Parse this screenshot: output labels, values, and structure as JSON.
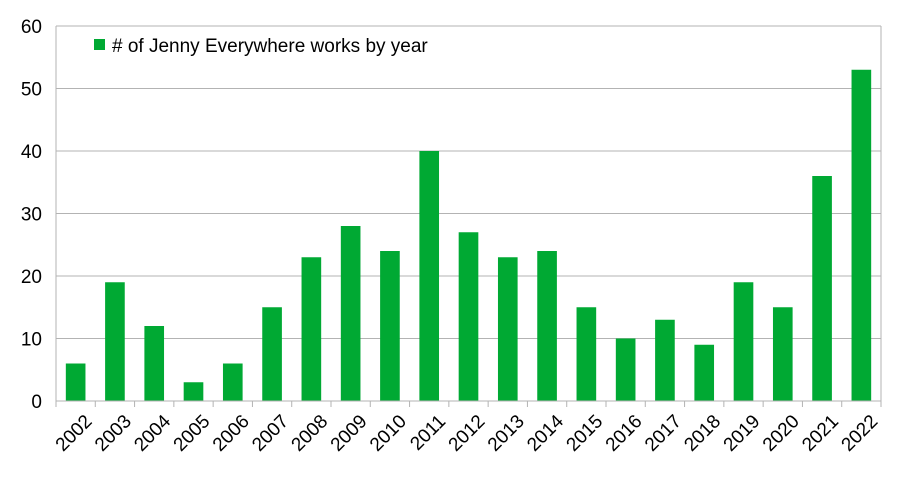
{
  "colors": {
    "bar": "#00a933",
    "grid": "#b3b3b3",
    "text": "#000000"
  },
  "chart_data": {
    "type": "bar",
    "title": "",
    "xlabel": "",
    "ylabel": "",
    "ylim": [
      0,
      60
    ],
    "yticks": [
      0,
      10,
      20,
      30,
      40,
      50,
      60
    ],
    "grid": true,
    "legend_position": "top-left",
    "categories": [
      "2002",
      "2003",
      "2004",
      "2005",
      "2006",
      "2007",
      "2008",
      "2009",
      "2010",
      "2011",
      "2012",
      "2013",
      "2014",
      "2015",
      "2016",
      "2017",
      "2018",
      "2019",
      "2020",
      "2021",
      "2022"
    ],
    "series": [
      {
        "name": "# of Jenny Everywhere works by year",
        "values": [
          6,
          19,
          12,
          3,
          6,
          15,
          23,
          28,
          24,
          40,
          27,
          23,
          24,
          15,
          10,
          13,
          9,
          19,
          15,
          36,
          53
        ]
      }
    ]
  }
}
